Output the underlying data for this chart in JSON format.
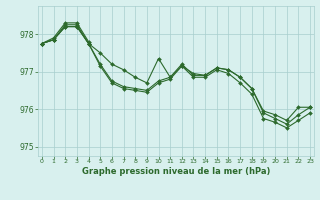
{
  "series": [
    {
      "x": [
        0,
        1,
        2,
        3,
        4,
        5,
        6,
        7,
        8,
        9,
        10,
        11,
        12,
        13,
        14,
        15,
        16,
        17,
        18,
        19,
        20,
        21,
        22,
        23
      ],
      "y": [
        977.75,
        977.85,
        978.2,
        978.2,
        977.75,
        977.5,
        977.2,
        977.05,
        976.85,
        976.7,
        977.35,
        976.85,
        977.15,
        976.95,
        976.9,
        977.1,
        977.05,
        976.85,
        976.55,
        975.95,
        975.85,
        975.7,
        976.05,
        976.05
      ]
    },
    {
      "x": [
        0,
        1,
        2,
        3,
        4,
        5,
        6,
        7,
        8,
        9,
        10,
        11,
        12,
        13,
        14,
        15,
        16,
        17,
        18,
        19,
        20,
        21,
        22,
        23
      ],
      "y": [
        977.75,
        977.85,
        978.2,
        978.2,
        977.75,
        977.2,
        976.75,
        976.6,
        976.55,
        976.5,
        976.75,
        976.85,
        977.2,
        976.9,
        976.9,
        977.1,
        977.05,
        976.85,
        976.55,
        975.9,
        975.75,
        975.6,
        975.85,
        976.05
      ]
    },
    {
      "x": [
        0,
        1,
        2,
        3,
        4,
        5,
        6,
        7,
        8,
        9,
        10,
        11,
        12,
        13,
        14,
        15,
        16,
        17,
        18,
        19,
        20,
        21,
        22,
        23
      ],
      "y": [
        977.75,
        977.85,
        978.25,
        978.25,
        977.75,
        977.15,
        976.7,
        976.55,
        976.5,
        976.45,
        976.7,
        976.8,
        977.15,
        976.85,
        976.85,
        977.05,
        976.95,
        976.7,
        976.4,
        975.75,
        975.65,
        975.5,
        975.7,
        975.9
      ]
    },
    {
      "x": [
        0,
        1,
        2,
        3,
        4
      ],
      "y": [
        977.75,
        977.9,
        978.3,
        978.3,
        977.8
      ]
    }
  ],
  "line_color": "#2d6a2d",
  "bg_color": "#d8f0ee",
  "grid_color": "#a8cece",
  "xlabel": "Graphe pression niveau de la mer (hPa)",
  "xlabel_color": "#2d6a2d",
  "ylim": [
    974.75,
    978.75
  ],
  "xlim": [
    -0.3,
    23.3
  ],
  "yticks": [
    975,
    976,
    977,
    978
  ],
  "xticks": [
    0,
    1,
    2,
    3,
    4,
    5,
    6,
    7,
    8,
    9,
    10,
    11,
    12,
    13,
    14,
    15,
    16,
    17,
    18,
    19,
    20,
    21,
    22,
    23
  ]
}
